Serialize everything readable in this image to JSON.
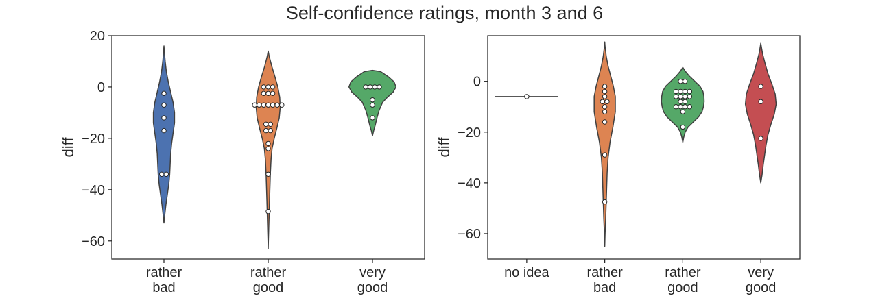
{
  "title": "Self-confidence ratings, month 3 and 6",
  "chart_data": [
    {
      "type": "violin",
      "ylabel": "diff",
      "xlabel": "",
      "ylim": [
        -67,
        20
      ],
      "yticks": [
        20,
        0,
        -20,
        -40,
        -60
      ],
      "ytick_labels": [
        "20",
        "0",
        "−20",
        "−40",
        "−60"
      ],
      "categories": [
        {
          "label": [
            "rather",
            "bad"
          ],
          "color": "#4c72b0",
          "range": [
            -53,
            16
          ],
          "profile": [
            [
              -53,
              0
            ],
            [
              -50,
              0.03
            ],
            [
              -46,
              0.08
            ],
            [
              -42,
              0.14
            ],
            [
              -38,
              0.2
            ],
            [
              -34,
              0.24
            ],
            [
              -30,
              0.26
            ],
            [
              -26,
              0.28
            ],
            [
              -22,
              0.32
            ],
            [
              -18,
              0.38
            ],
            [
              -14,
              0.44
            ],
            [
              -10,
              0.44
            ],
            [
              -6,
              0.38
            ],
            [
              -2,
              0.28
            ],
            [
              2,
              0.18
            ],
            [
              6,
              0.1
            ],
            [
              10,
              0.05
            ],
            [
              14,
              0.015
            ],
            [
              16,
              0
            ]
          ],
          "points": [
            -2.5,
            -7,
            -12,
            -17,
            -34,
            -34
          ]
        },
        {
          "label": [
            "rather",
            "good"
          ],
          "color": "#dd8452",
          "range": [
            -63,
            14
          ],
          "profile": [
            [
              -63,
              0
            ],
            [
              -58,
              0.015
            ],
            [
              -52,
              0.03
            ],
            [
              -46,
              0.05
            ],
            [
              -40,
              0.07
            ],
            [
              -34,
              0.09
            ],
            [
              -28,
              0.12
            ],
            [
              -24,
              0.16
            ],
            [
              -20,
              0.25
            ],
            [
              -16,
              0.36
            ],
            [
              -12,
              0.46
            ],
            [
              -8,
              0.5
            ],
            [
              -4,
              0.48
            ],
            [
              0,
              0.4
            ],
            [
              4,
              0.28
            ],
            [
              8,
              0.15
            ],
            [
              12,
              0.04
            ],
            [
              14,
              0
            ]
          ],
          "points": [
            0,
            0,
            0,
            -2.5,
            -2.5,
            -2.5,
            -7,
            -7,
            -7,
            -7,
            -7,
            -7,
            -7,
            -14.5,
            -14.5,
            -17,
            -17,
            -22,
            -24,
            -34,
            -48.5
          ]
        },
        {
          "label": [
            "very",
            "good"
          ],
          "color": "#55a868",
          "range": [
            -19,
            6.5
          ],
          "profile": [
            [
              -19,
              0
            ],
            [
              -17,
              0.05
            ],
            [
              -15,
              0.11
            ],
            [
              -12,
              0.19
            ],
            [
              -9,
              0.28
            ],
            [
              -6,
              0.42
            ],
            [
              -4,
              0.62
            ],
            [
              -2,
              0.86
            ],
            [
              0,
              0.98
            ],
            [
              2,
              0.9
            ],
            [
              4,
              0.66
            ],
            [
              6,
              0.34
            ],
            [
              6.5,
              0
            ]
          ],
          "points": [
            0,
            0,
            0,
            0,
            -5,
            -7,
            -12
          ]
        }
      ]
    },
    {
      "type": "violin",
      "ylabel": "diff",
      "xlabel": "",
      "ylim": [
        -70,
        18
      ],
      "yticks": [
        0,
        -20,
        -40,
        -60
      ],
      "ytick_labels": [
        "0",
        "−20",
        "−40",
        "−60"
      ],
      "categories": [
        {
          "label": [
            "no idea"
          ],
          "color": "#4c72b0",
          "range": [
            -6,
            -6
          ],
          "profile": [],
          "points": [
            -6
          ]
        },
        {
          "label": [
            "rather",
            "bad"
          ],
          "color": "#dd8452",
          "range": [
            -65,
            15.5
          ],
          "profile": [
            [
              -65,
              0
            ],
            [
              -60,
              0.015
            ],
            [
              -54,
              0.04
            ],
            [
              -48,
              0.06
            ],
            [
              -42,
              0.08
            ],
            [
              -36,
              0.1
            ],
            [
              -30,
              0.14
            ],
            [
              -24,
              0.22
            ],
            [
              -18,
              0.34
            ],
            [
              -12,
              0.44
            ],
            [
              -6,
              0.44
            ],
            [
              -2,
              0.36
            ],
            [
              2,
              0.25
            ],
            [
              6,
              0.14
            ],
            [
              10,
              0.06
            ],
            [
              14,
              0.01
            ],
            [
              15.5,
              0
            ]
          ],
          "points": [
            -2,
            -4,
            -6,
            -8,
            -8,
            -10,
            -12,
            -16,
            -29,
            -47.5
          ]
        },
        {
          "label": [
            "rather",
            "good"
          ],
          "color": "#55a868",
          "range": [
            -24,
            5.5
          ],
          "profile": [
            [
              -24,
              0
            ],
            [
              -22,
              0.04
            ],
            [
              -20,
              0.1
            ],
            [
              -18,
              0.22
            ],
            [
              -16,
              0.44
            ],
            [
              -14,
              0.66
            ],
            [
              -12,
              0.8
            ],
            [
              -10,
              0.86
            ],
            [
              -8,
              0.89
            ],
            [
              -6,
              0.88
            ],
            [
              -4,
              0.84
            ],
            [
              -2,
              0.72
            ],
            [
              0,
              0.5
            ],
            [
              2,
              0.28
            ],
            [
              4,
              0.1
            ],
            [
              5.5,
              0
            ]
          ],
          "points": [
            0,
            0,
            -4,
            -4,
            -4,
            -4,
            -6,
            -6,
            -6,
            -6,
            -8,
            -8,
            -10,
            -10,
            -10,
            -10,
            -12,
            -18
          ]
        },
        {
          "label": [
            "very",
            "good"
          ],
          "color": "#c44e52",
          "range": [
            -40,
            15
          ],
          "profile": [
            [
              -40,
              0
            ],
            [
              -37,
              0.05
            ],
            [
              -33,
              0.1
            ],
            [
              -29,
              0.16
            ],
            [
              -25,
              0.22
            ],
            [
              -21,
              0.3
            ],
            [
              -17,
              0.42
            ],
            [
              -13,
              0.56
            ],
            [
              -9,
              0.64
            ],
            [
              -5,
              0.6
            ],
            [
              -1,
              0.46
            ],
            [
              3,
              0.3
            ],
            [
              7,
              0.18
            ],
            [
              11,
              0.07
            ],
            [
              15,
              0
            ]
          ],
          "points": [
            -2,
            -8,
            -22.5
          ]
        }
      ]
    }
  ]
}
